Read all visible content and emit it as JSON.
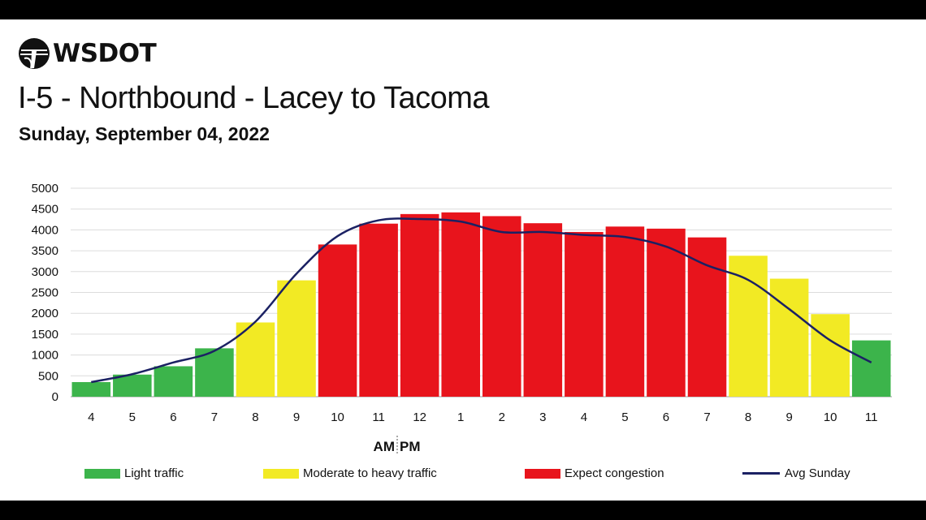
{
  "header": {
    "logo_text": "WSDOT",
    "title": "I-5 - Northbound - Lacey to Tacoma",
    "subtitle": "Sunday, September 04, 2022"
  },
  "chart_data": {
    "type": "bar",
    "title": "I-5 - Northbound - Lacey to Tacoma",
    "subtitle": "Sunday, September 04, 2022",
    "categories": [
      "4",
      "5",
      "6",
      "7",
      "8",
      "9",
      "10",
      "11",
      "12",
      "1",
      "2",
      "3",
      "4",
      "5",
      "6",
      "7",
      "8",
      "9",
      "10",
      "11"
    ],
    "values": [
      350,
      530,
      730,
      1160,
      1780,
      2790,
      3650,
      4150,
      4380,
      4420,
      4330,
      4160,
      3950,
      4080,
      4030,
      3820,
      3380,
      2830,
      1980,
      1350
    ],
    "levels": [
      "light",
      "light",
      "light",
      "light",
      "moderate",
      "moderate",
      "congestion",
      "congestion",
      "congestion",
      "congestion",
      "congestion",
      "congestion",
      "congestion",
      "congestion",
      "congestion",
      "congestion",
      "moderate",
      "moderate",
      "moderate",
      "light"
    ],
    "line_series": {
      "name": "Avg Sunday",
      "values": [
        350,
        540,
        820,
        1100,
        1800,
        2950,
        3850,
        4230,
        4260,
        4200,
        3950,
        3950,
        3880,
        3830,
        3600,
        3150,
        2800,
        2100,
        1350,
        820
      ]
    },
    "ylim": [
      0,
      5000
    ],
    "yticks": [
      0,
      500,
      1000,
      1500,
      2000,
      2500,
      3000,
      3500,
      4000,
      4500,
      5000
    ],
    "xlabel": "AM PM",
    "x_annotation_left": "AM",
    "x_annotation_right": "PM",
    "grid": true,
    "legend": {
      "position": "bottom",
      "items": [
        {
          "key": "light",
          "label": "Light traffic",
          "color": "#3cb44b"
        },
        {
          "key": "moderate",
          "label": "Moderate to heavy traffic",
          "color": "#f2ea24"
        },
        {
          "key": "congestion",
          "label": "Expect congestion",
          "color": "#e8141c"
        },
        {
          "key": "avg",
          "label": "Avg Sunday",
          "color": "#1b2163"
        }
      ]
    }
  }
}
